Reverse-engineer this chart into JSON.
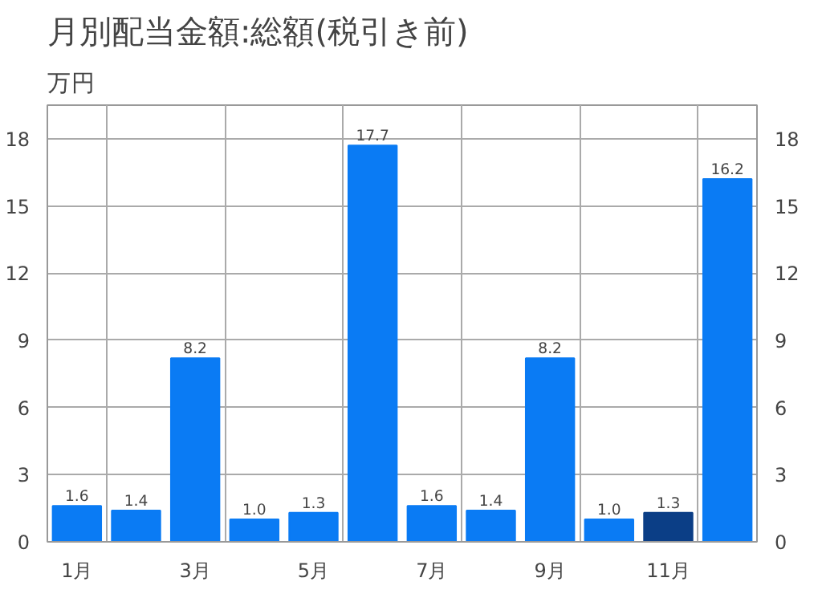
{
  "chart_data": {
    "type": "bar",
    "title": "月別配当金額:総額(税引き前)",
    "ylabel": "万円",
    "categories": [
      "1月",
      null,
      "3月",
      null,
      "5月",
      null,
      "7月",
      null,
      "9月",
      null,
      "11月",
      null
    ],
    "values": [
      1.6,
      1.4,
      8.2,
      1.0,
      1.3,
      17.7,
      1.6,
      1.4,
      8.2,
      1.0,
      1.3,
      16.2
    ],
    "colors": [
      "#0a7bf4",
      "#0a7bf4",
      "#0a7bf4",
      "#0a7bf4",
      "#0a7bf4",
      "#0a7bf4",
      "#0a7bf4",
      "#0a7bf4",
      "#0a7bf4",
      "#0a7bf4",
      "#0b3e86",
      "#0a7bf4"
    ],
    "ylim": [
      0,
      19.5
    ],
    "yticks": [
      0,
      3,
      6,
      9,
      12,
      15,
      18
    ],
    "y2lim": [
      0,
      19.5
    ],
    "y2ticks": [
      0,
      3,
      6,
      9,
      12,
      15,
      18
    ],
    "value_labels": [
      "1.6",
      "1.4",
      "8.2",
      "1.0",
      "1.3",
      "17.7",
      "1.6",
      "1.4",
      "8.2",
      "1.0",
      "1.3",
      "16.2"
    ],
    "grid": true
  }
}
